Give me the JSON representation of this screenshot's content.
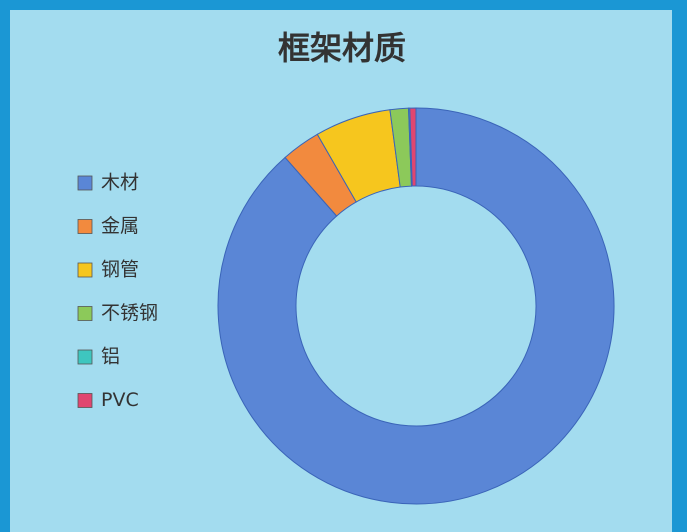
{
  "chart_data": {
    "type": "donut",
    "title": "框架材质",
    "categories": [
      "木材",
      "金属",
      "钢管",
      "不锈钢",
      "铝",
      "PVC"
    ],
    "values": [
      88.5,
      3.2,
      6.2,
      1.5,
      0.1,
      0.5
    ],
    "colors": [
      "#5a86d6",
      "#f28a3e",
      "#f6c61e",
      "#8cc95a",
      "#3ec6bf",
      "#e04670"
    ],
    "legend": "left"
  }
}
